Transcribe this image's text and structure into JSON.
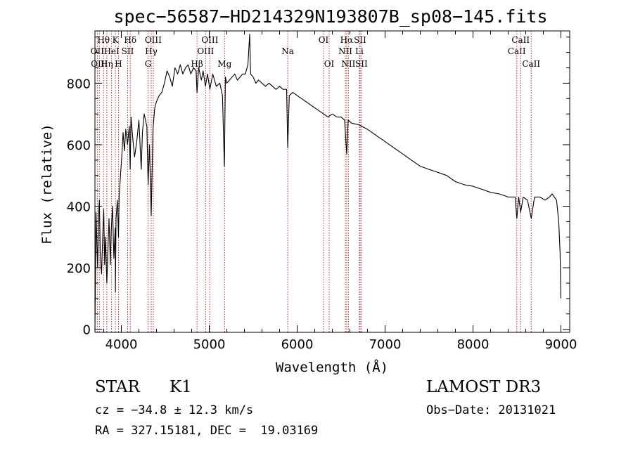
{
  "chart_data": {
    "type": "line",
    "title": "spec−56587−HD214329N193807B_sp08−145.fits",
    "xlabel": "Wavelength (Å)",
    "ylabel": "Flux (relative)",
    "xlim": [
      3700,
      9100
    ],
    "ylim": [
      -10,
      970
    ],
    "x_ticks": [
      4000,
      5000,
      6000,
      7000,
      8000,
      9000
    ],
    "y_ticks": [
      0,
      200,
      400,
      600,
      800
    ],
    "series": [
      {
        "name": "flux",
        "x": [
          3700,
          3705,
          3712,
          3720,
          3730,
          3740,
          3750,
          3760,
          3775,
          3790,
          3800,
          3810,
          3820,
          3835,
          3850,
          3860,
          3875,
          3885,
          3900,
          3915,
          3930,
          3933,
          3940,
          3955,
          3968,
          3975,
          3990,
          4005,
          4020,
          4035,
          4050,
          4070,
          4090,
          4101,
          4110,
          4130,
          4150,
          4175,
          4200,
          4226,
          4240,
          4260,
          4290,
          4305,
          4320,
          4340,
          4360,
          4380,
          4400,
          4430,
          4460,
          4490,
          4520,
          4550,
          4580,
          4610,
          4640,
          4670,
          4700,
          4730,
          4760,
          4790,
          4820,
          4850,
          4861,
          4880,
          4910,
          4930,
          4957,
          4980,
          5007,
          5040,
          5080,
          5120,
          5150,
          5172,
          5184,
          5200,
          5230,
          5260,
          5290,
          5320,
          5350,
          5380,
          5410,
          5440,
          5460,
          5470,
          5500,
          5530,
          5560,
          5600,
          5640,
          5680,
          5720,
          5760,
          5800,
          5840,
          5880,
          5893,
          5910,
          5950,
          6000,
          6050,
          6100,
          6150,
          6200,
          6250,
          6300,
          6350,
          6400,
          6450,
          6500,
          6540,
          6563,
          6580,
          6620,
          6700,
          6800,
          6900,
          7000,
          7100,
          7200,
          7300,
          7400,
          7500,
          7600,
          7700,
          7800,
          7900,
          8000,
          8100,
          8200,
          8300,
          8400,
          8480,
          8498,
          8520,
          8542,
          8570,
          8620,
          8662,
          8700,
          8760,
          8820,
          8870,
          8900,
          8950,
          8975,
          8990,
          9000
        ],
        "y": [
          0,
          150,
          380,
          300,
          200,
          360,
          420,
          250,
          180,
          320,
          390,
          210,
          300,
          150,
          280,
          360,
          210,
          320,
          400,
          230,
          330,
          120,
          360,
          420,
          300,
          430,
          500,
          560,
          640,
          580,
          650,
          600,
          660,
          520,
          690,
          620,
          560,
          610,
          680,
          520,
          640,
          700,
          660,
          470,
          600,
          370,
          650,
          720,
          740,
          760,
          770,
          800,
          840,
          820,
          790,
          850,
          830,
          860,
          830,
          850,
          860,
          830,
          850,
          840,
          770,
          850,
          810,
          840,
          790,
          830,
          780,
          830,
          790,
          800,
          760,
          530,
          820,
          800,
          810,
          820,
          830,
          810,
          820,
          830,
          830,
          860,
          960,
          830,
          820,
          800,
          810,
          800,
          790,
          800,
          790,
          780,
          790,
          780,
          780,
          590,
          760,
          770,
          760,
          750,
          740,
          730,
          720,
          710,
          700,
          690,
          700,
          690,
          690,
          680,
          570,
          680,
          670,
          665,
          650,
          630,
          610,
          590,
          570,
          550,
          530,
          520,
          510,
          500,
          480,
          470,
          465,
          455,
          445,
          440,
          430,
          430,
          360,
          430,
          380,
          430,
          420,
          360,
          430,
          430,
          420,
          430,
          440,
          420,
          350,
          250,
          100
        ]
      }
    ],
    "line_markers": [
      {
        "wavelength": 3727,
        "label": "OII",
        "row": 2
      },
      {
        "wavelength": 3750,
        "label": "OIII",
        "row": 3
      },
      {
        "wavelength": 3798,
        "label": "Hθ",
        "row": 1
      },
      {
        "wavelength": 3835,
        "label": "Hη",
        "row": 3
      },
      {
        "wavelength": 3889,
        "label": "HeI",
        "row": 2
      },
      {
        "wavelength": 3933,
        "label": "K",
        "row": 1
      },
      {
        "wavelength": 3968,
        "label": "H",
        "row": 3
      },
      {
        "wavelength": 4072,
        "label": "SII",
        "row": 2
      },
      {
        "wavelength": 4102,
        "label": "Hδ",
        "row": 1
      },
      {
        "wavelength": 4304,
        "label": "G",
        "row": 3
      },
      {
        "wavelength": 4340,
        "label": "Hγ",
        "row": 2
      },
      {
        "wavelength": 4363,
        "label": "OIII",
        "row": 1
      },
      {
        "wavelength": 4861,
        "label": "Hβ",
        "row": 3
      },
      {
        "wavelength": 4959,
        "label": "OIII",
        "row": 2
      },
      {
        "wavelength": 5007,
        "label": "OIII",
        "row": 1
      },
      {
        "wavelength": 5175,
        "label": "Mg",
        "row": 3
      },
      {
        "wavelength": 5893,
        "label": "Na",
        "row": 2
      },
      {
        "wavelength": 6300,
        "label": "OI",
        "row": 1
      },
      {
        "wavelength": 6364,
        "label": "OI",
        "row": 3
      },
      {
        "wavelength": 6548,
        "label": "NII",
        "row": 2
      },
      {
        "wavelength": 6563,
        "label": "Hα",
        "row": 1
      },
      {
        "wavelength": 6583,
        "label": "NII",
        "row": 3
      },
      {
        "wavelength": 6707,
        "label": "Li",
        "row": 2
      },
      {
        "wavelength": 6716,
        "label": "SII",
        "row": 1
      },
      {
        "wavelength": 6731,
        "label": "SII",
        "row": 3
      },
      {
        "wavelength": 8498,
        "label": "CaII",
        "row": 2
      },
      {
        "wavelength": 8542,
        "label": "CaII",
        "row": 1
      },
      {
        "wavelength": 8662,
        "label": "CaII",
        "row": 3
      }
    ],
    "annotations": {
      "object_class": "STAR",
      "subclass": "K1",
      "survey": "LAMOST DR3",
      "redshift_text": "cz = −34.8 ± 12.3 km/s",
      "obs_date_text": "Obs−Date: 20131021",
      "coords_text": "RA = 327.15181, DEC =  19.03169"
    }
  },
  "colors": {
    "spectrum": "#000000",
    "marker_lines": "#b03030",
    "axes": "#000000"
  }
}
